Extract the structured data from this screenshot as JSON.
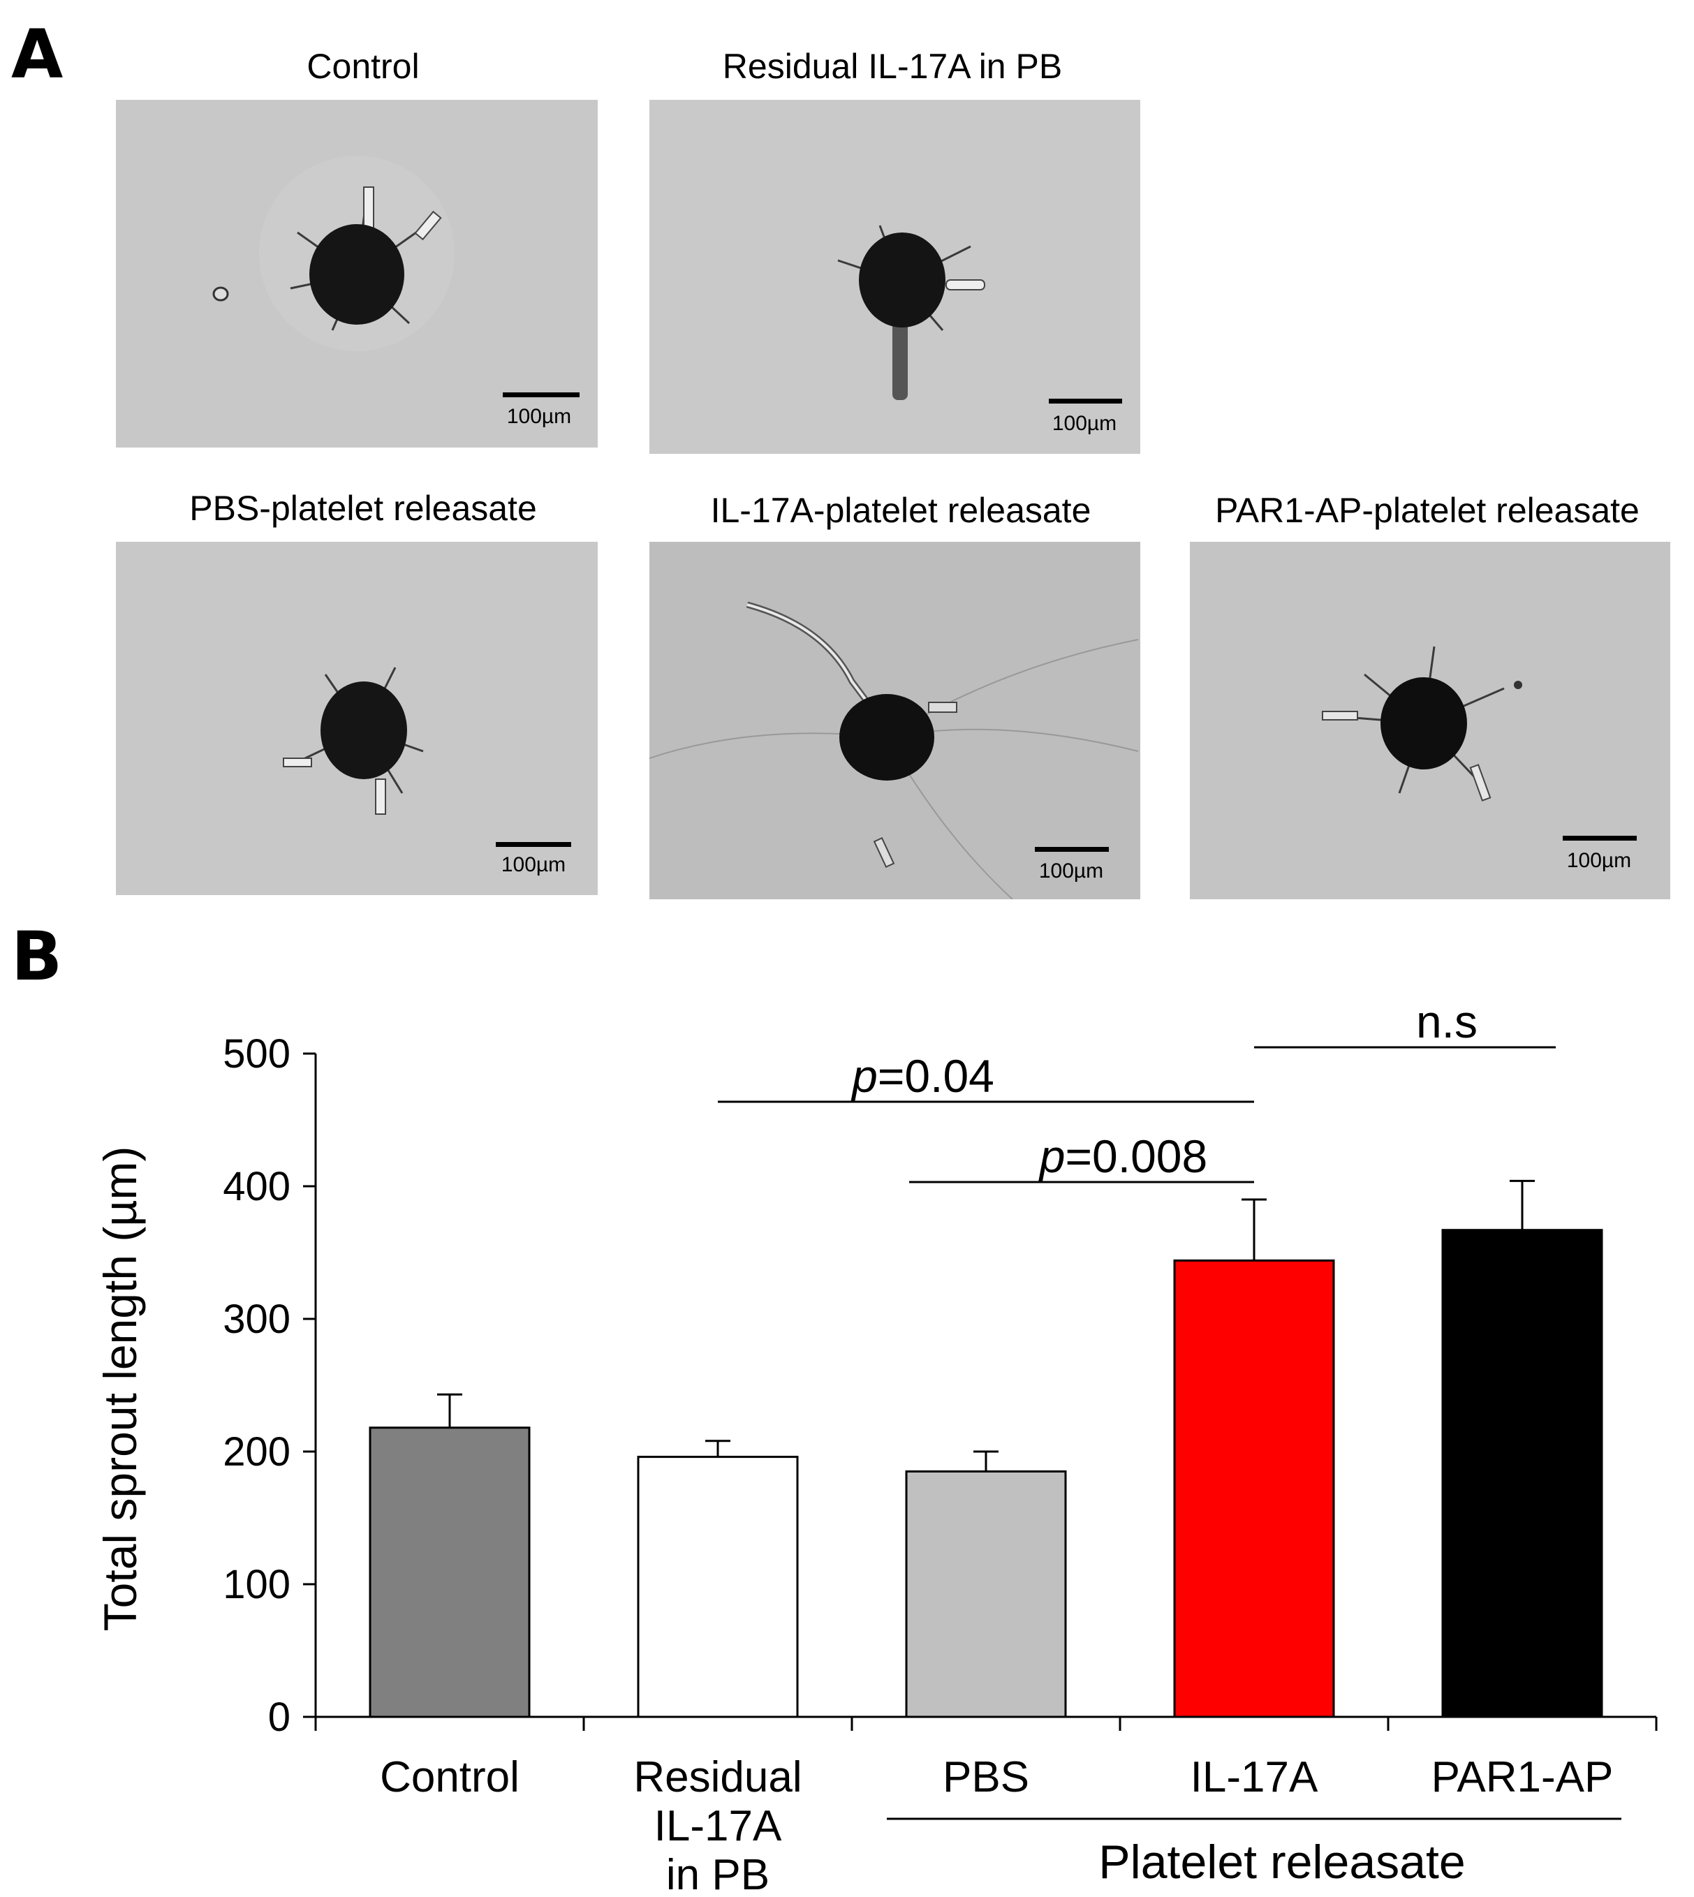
{
  "panel_a": {
    "letter": "A",
    "micrographs": [
      {
        "title": "Control",
        "scale_label": "100µm"
      },
      {
        "title": "Residual IL-17A in PB",
        "scale_label": "100µm"
      },
      {
        "title": "PBS-platelet releasate",
        "scale_label": "100µm"
      },
      {
        "title": "IL-17A-platelet releasate",
        "scale_label": "100µm"
      },
      {
        "title": "PAR1-AP-platelet releasate",
        "scale_label": "100µm"
      }
    ]
  },
  "panel_b": {
    "letter": "B"
  },
  "chart_data": {
    "type": "bar",
    "categories": [
      "Control",
      "Residual\nIL-17A\nin PB",
      "PBS",
      "IL-17A",
      "PAR1-AP"
    ],
    "values": [
      218,
      196,
      185,
      344,
      367
    ],
    "errors": [
      25,
      12,
      15,
      46,
      37
    ],
    "colors": [
      "#808080",
      "#ffffff",
      "#c0c0c0",
      "#ff0000",
      "#000000"
    ],
    "ylabel": "Total sprout length (µm)",
    "ylim": [
      0,
      500
    ],
    "yticks": [
      0,
      100,
      200,
      300,
      400,
      500
    ],
    "group_label": "Platelet releasate",
    "annotations": [
      {
        "prefix": "p",
        "text": "=0.04",
        "from": "Residual\nIL-17A\nin PB",
        "to": "IL-17A"
      },
      {
        "prefix": "p",
        "text": "=0.008",
        "from": "PBS",
        "to": "IL-17A"
      },
      {
        "prefix": "",
        "text": "n.s",
        "from": "IL-17A",
        "to": "PAR1-AP"
      }
    ],
    "grid": false
  }
}
